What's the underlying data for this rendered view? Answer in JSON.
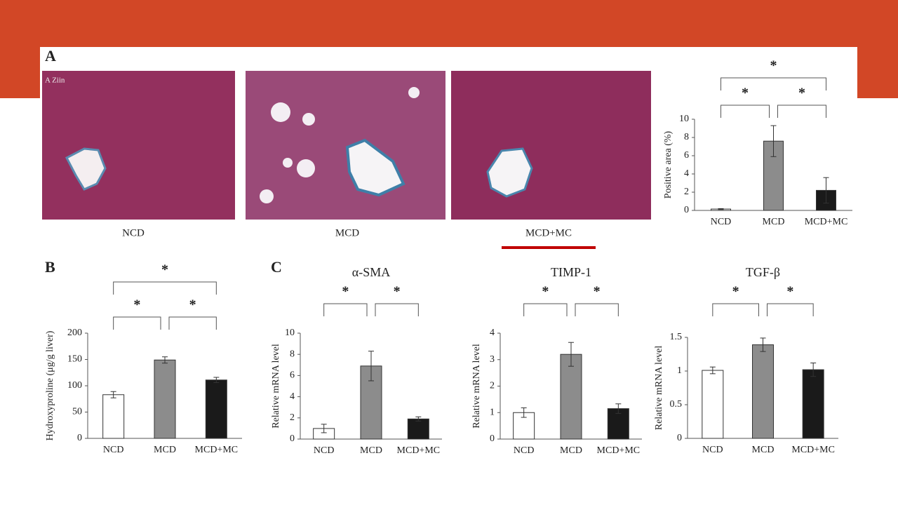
{
  "panel_labels": [
    "A",
    "B",
    "C"
  ],
  "micrographs": {
    "corner_text": "A Ziin",
    "labels": [
      "NCD",
      "MCD",
      "MCD+MC"
    ]
  },
  "chart_data": [
    {
      "type": "bar",
      "ylabel": "Positive area (%)",
      "categories": [
        "NCD",
        "MCD",
        "MCD+MC"
      ],
      "values": [
        0.15,
        7.6,
        2.2
      ],
      "errors": [
        0.05,
        1.7,
        1.4
      ],
      "colors": [
        "#ffffff",
        "#8c8c8c",
        "#1a1a1a"
      ],
      "ylim": [
        0,
        10
      ],
      "yticks": [
        0,
        2,
        4,
        6,
        8,
        10
      ],
      "significance": [
        {
          "label": "*",
          "pair": [
            "NCD",
            "MCD"
          ]
        },
        {
          "label": "*",
          "pair": [
            "MCD",
            "MCD+MC"
          ]
        },
        {
          "label": "*",
          "pair": [
            "NCD",
            "MCD+MC"
          ]
        }
      ]
    },
    {
      "type": "bar",
      "ylabel": "Hydroxyproline (μg/g liver)",
      "categories": [
        "NCD",
        "MCD",
        "MCD+MC"
      ],
      "values": [
        83,
        149,
        111
      ],
      "errors": [
        6,
        6,
        5
      ],
      "colors": [
        "#ffffff",
        "#8c8c8c",
        "#1a1a1a"
      ],
      "ylim": [
        0,
        200
      ],
      "yticks": [
        0,
        50,
        100,
        150,
        200
      ],
      "significance": [
        {
          "label": "*",
          "pair": [
            "NCD",
            "MCD"
          ]
        },
        {
          "label": "*",
          "pair": [
            "MCD",
            "MCD+MC"
          ]
        },
        {
          "label": "*",
          "pair": [
            "NCD",
            "MCD+MC"
          ]
        }
      ]
    },
    {
      "type": "bar",
      "title": "α-SMA",
      "ylabel": "Relative mRNA level",
      "categories": [
        "NCD",
        "MCD",
        "MCD+MC"
      ],
      "values": [
        1.0,
        6.9,
        1.9
      ],
      "errors": [
        0.4,
        1.4,
        0.2
      ],
      "colors": [
        "#ffffff",
        "#8c8c8c",
        "#1a1a1a"
      ],
      "ylim": [
        0,
        10
      ],
      "yticks": [
        0,
        2,
        4,
        6,
        8,
        10
      ],
      "significance": [
        {
          "label": "*",
          "pair": [
            "NCD",
            "MCD"
          ]
        },
        {
          "label": "*",
          "pair": [
            "MCD",
            "MCD+MC"
          ]
        }
      ]
    },
    {
      "type": "bar",
      "title": "TIMP-1",
      "ylabel": "Relative mRNA level",
      "categories": [
        "NCD",
        "MCD",
        "MCD+MC"
      ],
      "values": [
        1.0,
        3.2,
        1.15
      ],
      "errors": [
        0.18,
        0.45,
        0.18
      ],
      "colors": [
        "#ffffff",
        "#8c8c8c",
        "#1a1a1a"
      ],
      "ylim": [
        0,
        4
      ],
      "yticks": [
        0,
        1,
        2,
        3,
        4
      ],
      "significance": [
        {
          "label": "*",
          "pair": [
            "NCD",
            "MCD"
          ]
        },
        {
          "label": "*",
          "pair": [
            "MCD",
            "MCD+MC"
          ]
        }
      ]
    },
    {
      "type": "bar",
      "title": "TGF-β",
      "ylabel": "Relative mRNA level",
      "categories": [
        "NCD",
        "MCD",
        "MCD+MC"
      ],
      "values": [
        1.01,
        1.39,
        1.02
      ],
      "errors": [
        0.05,
        0.1,
        0.1
      ],
      "colors": [
        "#ffffff",
        "#8c8c8c",
        "#1a1a1a"
      ],
      "ylim": [
        0,
        1.5
      ],
      "yticks": [
        0,
        0.5,
        1,
        1.5
      ],
      "significance": [
        {
          "label": "*",
          "pair": [
            "NCD",
            "MCD"
          ]
        },
        {
          "label": "*",
          "pair": [
            "MCD",
            "MCD+MC"
          ]
        }
      ]
    }
  ]
}
